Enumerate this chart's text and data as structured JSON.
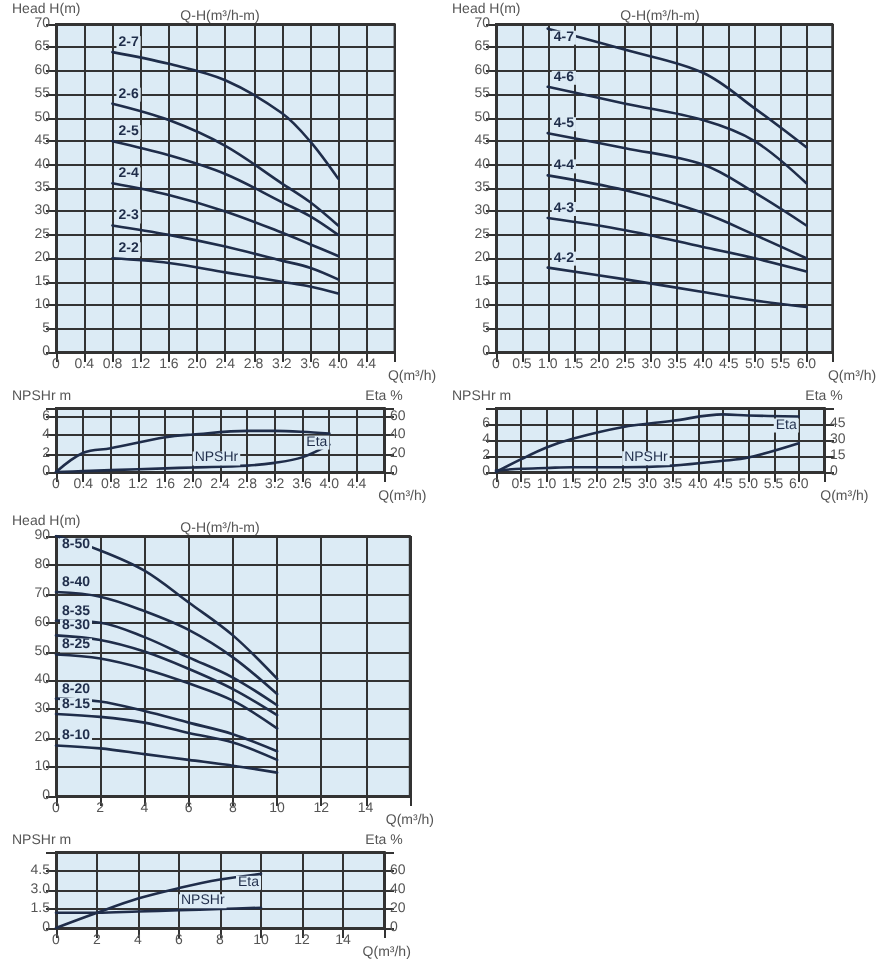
{
  "chart_data": [
    {
      "type": "line",
      "title": "Q-H(m³/h-m)",
      "ylabel": "Head H(m)",
      "xlabel": "Q(m³/h)",
      "xlim": [
        0,
        4.8
      ],
      "xticks": [
        0,
        0.4,
        0.8,
        1.2,
        1.6,
        {
          "value": 2,
          "label": "2.0"
        },
        2.4,
        2.8,
        3.2,
        3.6,
        {
          "value": 4,
          "label": "4.0"
        },
        4.4
      ],
      "ylim": [
        0,
        70
      ],
      "yticks": [
        0,
        5,
        10,
        15,
        20,
        25,
        30,
        35,
        40,
        45,
        50,
        55,
        60,
        65,
        70
      ],
      "grid": true,
      "marker": "none",
      "x": [
        0.8,
        1.6,
        2.4,
        3.2,
        3.6,
        4.0
      ],
      "series": [
        {
          "name": "2-7",
          "color": "#1f2d4a",
          "values": [
            64,
            61.5,
            58,
            51,
            45,
            37
          ]
        },
        {
          "name": "2-6",
          "color": "#1f2d4a",
          "values": [
            53,
            49.5,
            44,
            36,
            32,
            27
          ]
        },
        {
          "name": "2-5",
          "color": "#1f2d4a",
          "values": [
            45,
            42,
            38,
            32,
            29,
            25
          ]
        },
        {
          "name": "2-4",
          "color": "#1f2d4a",
          "values": [
            36,
            33.5,
            30,
            25.5,
            23,
            20.5
          ]
        },
        {
          "name": "2-3",
          "color": "#1f2d4a",
          "values": [
            27,
            25,
            22.5,
            19.5,
            18,
            15.5
          ]
        },
        {
          "name": "2-2",
          "color": "#1f2d4a",
          "values": [
            20,
            19,
            17,
            15,
            14,
            12.5
          ]
        }
      ]
    },
    {
      "type": "line",
      "ylabel": "NPSHr m",
      "y2label": "Eta %",
      "xlabel": "Q(m³/h)",
      "xlim": [
        0,
        4.8
      ],
      "xticks": [
        0,
        0.4,
        0.8,
        1.2,
        1.6,
        {
          "value": 2,
          "label": "2.0"
        },
        2.4,
        2.8,
        3.2,
        3.6,
        {
          "value": 4,
          "label": "4.0"
        },
        4.4
      ],
      "ylim": [
        0,
        7
      ],
      "yticks": [
        0,
        2,
        4,
        6
      ],
      "y2lim": [
        0,
        70
      ],
      "y2ticks": [
        0,
        20,
        40,
        60
      ],
      "grid": true,
      "marker": "none",
      "x": [
        0,
        0.4,
        0.8,
        1.6,
        2.0,
        2.8,
        3.2,
        3.6,
        4.0
      ],
      "series": [
        {
          "name": "Eta",
          "color": "#1f2d4a",
          "axis": "y2",
          "values": [
            0,
            21,
            26,
            38,
            41,
            45,
            45,
            44,
            42
          ]
        },
        {
          "name": "NPSHr",
          "color": "#1f2d4a",
          "values": [
            0,
            0.1,
            0.2,
            0.4,
            0.5,
            0.7,
            1.0,
            1.6,
            3.0
          ]
        }
      ]
    },
    {
      "type": "line",
      "title": "Q-H(m³/h-m)",
      "ylabel": "Head H(m)",
      "xlabel": "Q(m³/h)",
      "xlim": [
        0,
        6.5
      ],
      "xticks": [
        0,
        0.5,
        {
          "value": 1,
          "label": "1.0"
        },
        1.5,
        {
          "value": 2,
          "label": "2.0"
        },
        2.5,
        {
          "value": 3,
          "label": "3.0"
        },
        3.5,
        {
          "value": 4,
          "label": "4.0"
        },
        4.5,
        {
          "value": 5,
          "label": "5.0"
        },
        5.5,
        {
          "value": 6,
          "label": "6.0"
        }
      ],
      "ylim": [
        0,
        70
      ],
      "yticks": [
        0,
        5,
        10,
        15,
        20,
        25,
        30,
        35,
        40,
        45,
        50,
        55,
        60,
        65,
        70
      ],
      "grid": true,
      "marker": "none",
      "x": [
        1.0,
        2.5,
        4.0,
        5.0,
        6.0
      ],
      "series": [
        {
          "name": "4-7",
          "color": "#1f2d4a",
          "values": [
            69,
            64.5,
            59.6,
            52,
            43.7
          ]
        },
        {
          "name": "4-6",
          "color": "#1f2d4a",
          "values": [
            56.6,
            53,
            49.5,
            45,
            36
          ]
        },
        {
          "name": "4-5",
          "color": "#1f2d4a",
          "values": [
            46.7,
            43.5,
            40,
            34,
            27
          ]
        },
        {
          "name": "4-4",
          "color": "#1f2d4a",
          "values": [
            37.7,
            34.5,
            29.7,
            25,
            20
          ]
        },
        {
          "name": "4-3",
          "color": "#1f2d4a",
          "values": [
            28.6,
            26,
            22.4,
            20,
            17.2
          ]
        },
        {
          "name": "4-2",
          "color": "#1f2d4a",
          "values": [
            18,
            15.5,
            12.8,
            11,
            9.6
          ]
        }
      ]
    },
    {
      "type": "line",
      "ylabel": "NPSHr m",
      "y2label": "Eta %",
      "xlabel": "Q(m³/h)",
      "xlim": [
        0,
        6.5
      ],
      "xticks": [
        0,
        0.5,
        {
          "value": 1,
          "label": "1.0"
        },
        1.5,
        {
          "value": 2,
          "label": "2.0"
        },
        2.5,
        {
          "value": 3,
          "label": "3.0"
        },
        3.5,
        {
          "value": 4,
          "label": "4.0"
        },
        4.5,
        {
          "value": 5,
          "label": "5.0"
        },
        5.5,
        {
          "value": 6,
          "label": "6.0"
        }
      ],
      "ylim": [
        0,
        8
      ],
      "yticks": [
        0,
        2,
        4,
        6
      ],
      "y2lim": [
        0,
        60
      ],
      "y2ticks": [
        0,
        15,
        30,
        45
      ],
      "grid": true,
      "marker": "none",
      "x": [
        0,
        0.5,
        1.0,
        1.5,
        2.5,
        3.5,
        4.5,
        5.0,
        6.0
      ],
      "series": [
        {
          "name": "Eta",
          "color": "#1f2d4a",
          "axis": "y2",
          "values": [
            0,
            12,
            23,
            31,
            42,
            48,
            54,
            53,
            52
          ]
        },
        {
          "name": "NPSHr",
          "color": "#1f2d4a",
          "values": [
            0.2,
            0.4,
            0.5,
            0.6,
            0.6,
            0.8,
            1.4,
            1.8,
            3.6
          ]
        }
      ]
    },
    {
      "type": "line",
      "title": "Q-H(m³/h-m)",
      "ylabel": "Head H(m)",
      "xlabel": "Q(m³/h)",
      "xlim": [
        0,
        16
      ],
      "xticks": [
        0,
        2,
        4,
        6,
        8,
        10,
        12,
        14
      ],
      "ylim": [
        0,
        90
      ],
      "yticks": [
        0,
        10,
        20,
        30,
        40,
        50,
        60,
        70,
        80,
        90
      ],
      "grid": true,
      "marker": "none",
      "x": [
        0,
        2,
        4,
        6,
        8,
        10
      ],
      "series": [
        {
          "name": "8-50",
          "color": "#1f2d4a",
          "values": [
            90,
            85,
            78,
            67,
            55.6,
            40.6
          ]
        },
        {
          "name": "8-40",
          "color": "#1f2d4a",
          "values": [
            70.6,
            69,
            64,
            57.5,
            48,
            35.3
          ]
        },
        {
          "name": "8-35",
          "color": "#1f2d4a",
          "values": [
            60.7,
            60,
            55,
            48,
            41,
            31.4
          ]
        },
        {
          "name": "8-30",
          "color": "#1f2d4a",
          "values": [
            55.6,
            54,
            50,
            44,
            37,
            28
          ]
        },
        {
          "name": "8-25",
          "color": "#1f2d4a",
          "values": [
            49,
            47.6,
            44,
            39,
            33,
            23.4
          ]
        },
        {
          "name": "8-20",
          "color": "#1f2d4a",
          "values": [
            33.7,
            32.7,
            29.4,
            25.4,
            21.4,
            15.5
          ]
        },
        {
          "name": "8-15",
          "color": "#1f2d4a",
          "values": [
            28.4,
            27.4,
            25.4,
            21.8,
            18.5,
            12.5
          ]
        },
        {
          "name": "8-10",
          "color": "#1f2d4a",
          "values": [
            17.5,
            16.5,
            14.5,
            12.5,
            10.5,
            8.1
          ]
        }
      ]
    },
    {
      "type": "line",
      "ylabel": "NPSHr m",
      "y2label": "Eta %",
      "xlabel": "Q(m³/h)",
      "xlim": [
        0,
        16
      ],
      "xticks": [
        0,
        2,
        4,
        6,
        8,
        10,
        12,
        14
      ],
      "ylim": [
        0,
        6
      ],
      "yticks": [
        0,
        1.5,
        {
          "value": 3,
          "label": "3.0"
        },
        4.5
      ],
      "y2lim": [
        0,
        80
      ],
      "y2ticks": [
        0,
        20,
        40,
        60
      ],
      "grid": true,
      "marker": "none",
      "x": [
        0,
        2,
        4,
        6,
        8,
        10
      ],
      "series": [
        {
          "name": "Eta",
          "color": "#1f2d4a",
          "axis": "y2",
          "values": [
            0,
            16,
            31,
            42,
            51,
            57
          ]
        },
        {
          "name": "NPSHr",
          "color": "#1f2d4a",
          "values": [
            1.2,
            1.2,
            1.3,
            1.4,
            1.5,
            1.6
          ]
        }
      ]
    }
  ]
}
